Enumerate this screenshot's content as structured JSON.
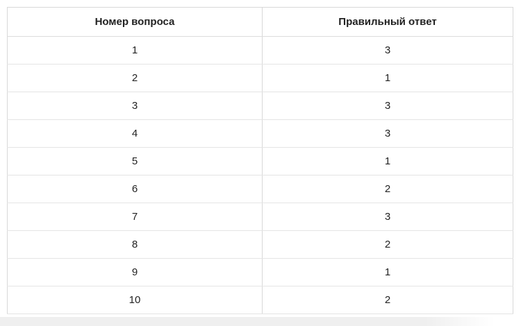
{
  "table": {
    "headers": [
      "Номер вопроса",
      "Правильный ответ"
    ],
    "rows": [
      [
        "1",
        "3"
      ],
      [
        "2",
        "1"
      ],
      [
        "3",
        "3"
      ],
      [
        "4",
        "3"
      ],
      [
        "5",
        "1"
      ],
      [
        "6",
        "2"
      ],
      [
        "7",
        "3"
      ],
      [
        "8",
        "2"
      ],
      [
        "9",
        "1"
      ],
      [
        "10",
        "2"
      ]
    ]
  },
  "colors": {
    "background": "#ffffff",
    "outer_border": "#d8d8d8",
    "row_border": "#e4e4e4",
    "text": "#222222",
    "bottom_strip": "#efefef"
  }
}
